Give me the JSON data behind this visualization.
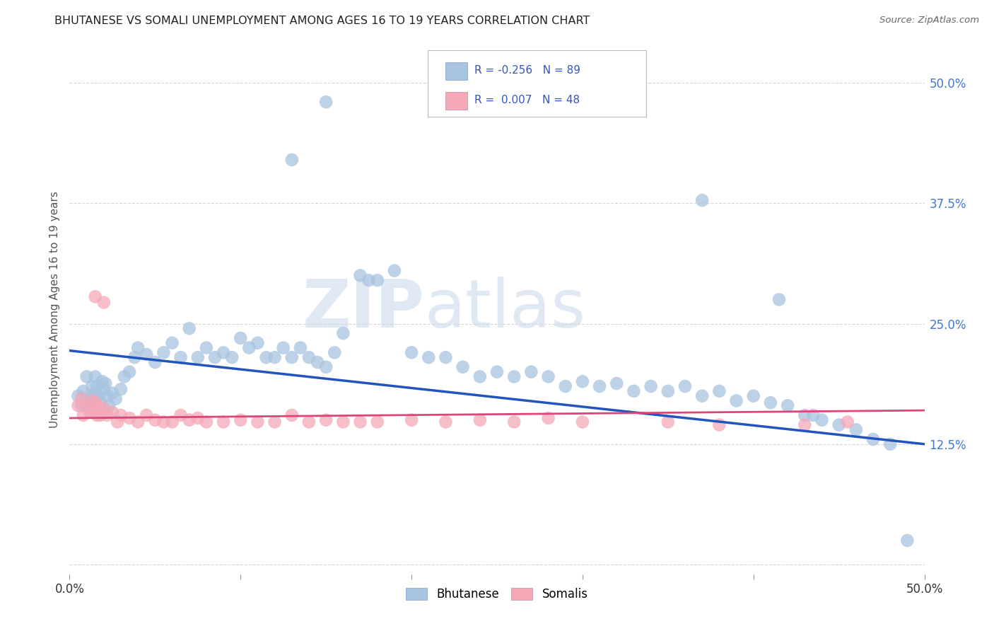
{
  "title": "BHUTANESE VS SOMALI UNEMPLOYMENT AMONG AGES 16 TO 19 YEARS CORRELATION CHART",
  "source": "Source: ZipAtlas.com",
  "ylabel": "Unemployment Among Ages 16 to 19 years",
  "bhutanese_color": "#a8c4e0",
  "somali_color": "#f4a8b8",
  "trendline_bhutanese_color": "#2255bb",
  "trendline_somali_color": "#dd4477",
  "background_color": "#ffffff",
  "watermark_color": "#dde8f0",
  "xlim": [
    0.0,
    0.5
  ],
  "ylim": [
    -0.01,
    0.54
  ],
  "trendline_bhutanese": [
    0.222,
    0.125
  ],
  "trendline_somali": [
    0.152,
    0.16
  ],
  "bhutanese_x": [
    0.005,
    0.007,
    0.008,
    0.01,
    0.01,
    0.011,
    0.012,
    0.013,
    0.014,
    0.015,
    0.015,
    0.016,
    0.017,
    0.018,
    0.019,
    0.02,
    0.021,
    0.022,
    0.023,
    0.025,
    0.027,
    0.03,
    0.032,
    0.035,
    0.038,
    0.04,
    0.045,
    0.05,
    0.055,
    0.06,
    0.065,
    0.07,
    0.075,
    0.08,
    0.085,
    0.09,
    0.095,
    0.1,
    0.105,
    0.11,
    0.115,
    0.12,
    0.125,
    0.13,
    0.135,
    0.14,
    0.145,
    0.15,
    0.155,
    0.16,
    0.17,
    0.175,
    0.18,
    0.19,
    0.2,
    0.21,
    0.22,
    0.23,
    0.24,
    0.25,
    0.26,
    0.27,
    0.28,
    0.29,
    0.3,
    0.31,
    0.32,
    0.33,
    0.34,
    0.35,
    0.36,
    0.37,
    0.38,
    0.39,
    0.4,
    0.41,
    0.42,
    0.43,
    0.44,
    0.45,
    0.46,
    0.47,
    0.48,
    0.13,
    0.15,
    0.37,
    0.415,
    0.435,
    0.49
  ],
  "bhutanese_y": [
    0.175,
    0.165,
    0.18,
    0.17,
    0.195,
    0.165,
    0.175,
    0.185,
    0.172,
    0.178,
    0.195,
    0.185,
    0.175,
    0.168,
    0.19,
    0.182,
    0.188,
    0.175,
    0.165,
    0.178,
    0.172,
    0.182,
    0.195,
    0.2,
    0.215,
    0.225,
    0.218,
    0.21,
    0.22,
    0.23,
    0.215,
    0.245,
    0.215,
    0.225,
    0.215,
    0.22,
    0.215,
    0.235,
    0.225,
    0.23,
    0.215,
    0.215,
    0.225,
    0.215,
    0.225,
    0.215,
    0.21,
    0.205,
    0.22,
    0.24,
    0.3,
    0.295,
    0.295,
    0.305,
    0.22,
    0.215,
    0.215,
    0.205,
    0.195,
    0.2,
    0.195,
    0.2,
    0.195,
    0.185,
    0.19,
    0.185,
    0.188,
    0.18,
    0.185,
    0.18,
    0.185,
    0.175,
    0.18,
    0.17,
    0.175,
    0.168,
    0.165,
    0.155,
    0.15,
    0.145,
    0.14,
    0.13,
    0.125,
    0.42,
    0.48,
    0.378,
    0.275,
    0.155,
    0.025
  ],
  "somali_x": [
    0.005,
    0.007,
    0.008,
    0.01,
    0.012,
    0.013,
    0.014,
    0.015,
    0.016,
    0.017,
    0.018,
    0.02,
    0.022,
    0.025,
    0.028,
    0.03,
    0.035,
    0.04,
    0.045,
    0.05,
    0.055,
    0.06,
    0.065,
    0.07,
    0.075,
    0.08,
    0.09,
    0.1,
    0.11,
    0.12,
    0.13,
    0.14,
    0.15,
    0.16,
    0.17,
    0.18,
    0.2,
    0.22,
    0.24,
    0.26,
    0.28,
    0.3,
    0.35,
    0.38,
    0.43,
    0.455,
    0.015,
    0.02
  ],
  "somali_y": [
    0.165,
    0.172,
    0.155,
    0.165,
    0.158,
    0.17,
    0.16,
    0.168,
    0.155,
    0.162,
    0.155,
    0.162,
    0.155,
    0.158,
    0.148,
    0.155,
    0.152,
    0.148,
    0.155,
    0.15,
    0.148,
    0.148,
    0.155,
    0.15,
    0.152,
    0.148,
    0.148,
    0.15,
    0.148,
    0.148,
    0.155,
    0.148,
    0.15,
    0.148,
    0.148,
    0.148,
    0.15,
    0.148,
    0.15,
    0.148,
    0.152,
    0.148,
    0.148,
    0.145,
    0.145,
    0.148,
    0.278,
    0.272
  ]
}
